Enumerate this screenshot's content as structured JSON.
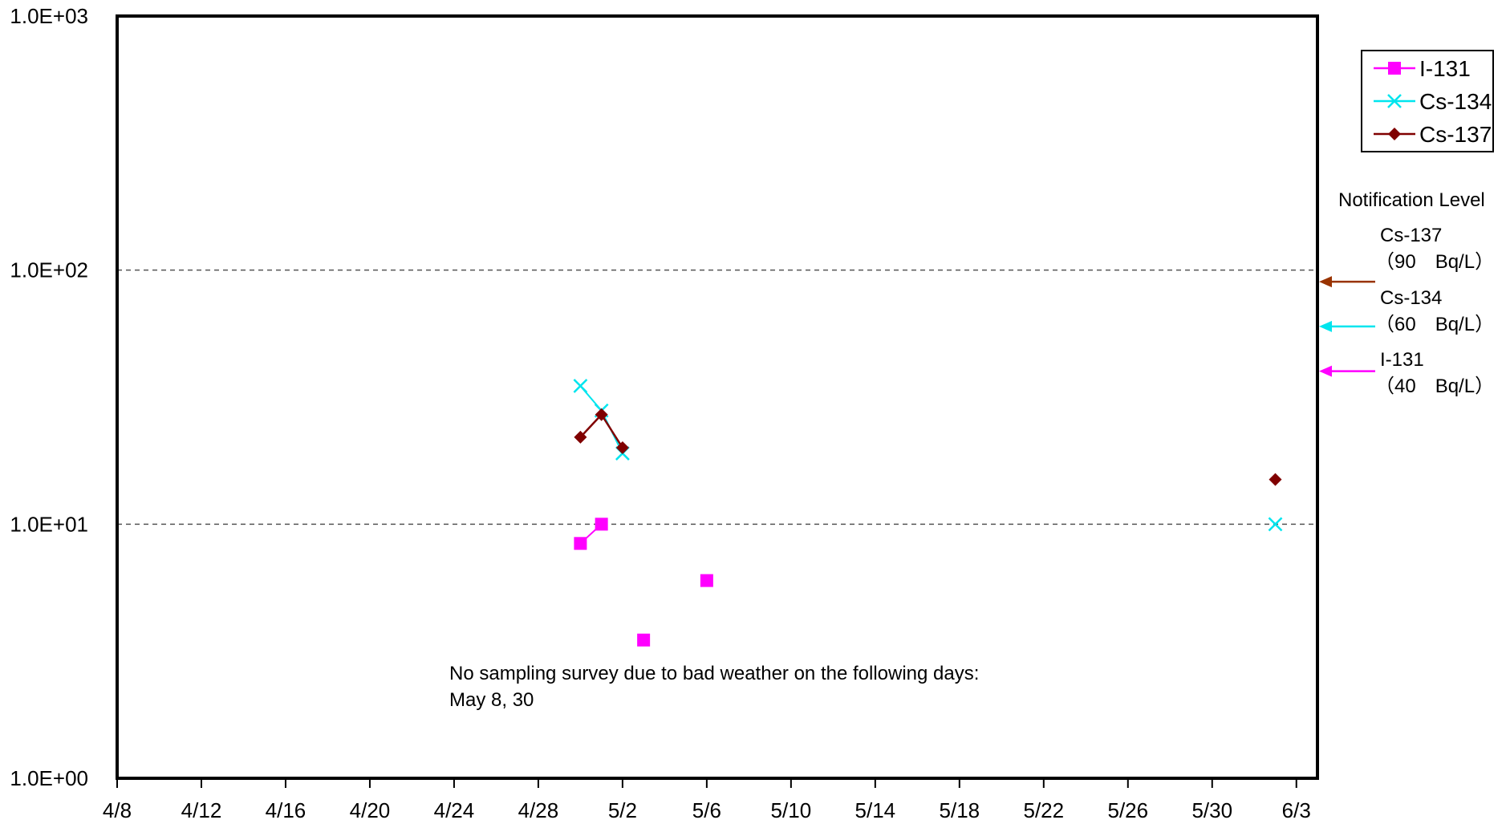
{
  "chart_data": {
    "type": "line",
    "title": "",
    "xlabel": "",
    "ylabel": "",
    "y_scale": "log",
    "ylim": [
      1,
      1000
    ],
    "y_ticks": [
      1,
      10,
      100,
      1000
    ],
    "y_tick_labels": [
      "1.0E+00",
      "1.0E+01",
      "1.0E+02",
      "1.0E+03"
    ],
    "xlim": [
      "2011-04-08",
      "2011-06-04"
    ],
    "x_ticks": [
      "2011-04-08",
      "2011-04-12",
      "2011-04-16",
      "2011-04-20",
      "2011-04-24",
      "2011-04-28",
      "2011-05-02",
      "2011-05-06",
      "2011-05-10",
      "2011-05-14",
      "2011-05-18",
      "2011-05-22",
      "2011-05-26",
      "2011-05-30",
      "2011-06-03"
    ],
    "x_tick_labels": [
      "4/8",
      "4/12",
      "4/16",
      "4/20",
      "4/24",
      "4/28",
      "5/2",
      "5/6",
      "5/10",
      "5/14",
      "5/18",
      "5/22",
      "5/26",
      "5/30",
      "6/3"
    ],
    "grid": "horizontal dashed",
    "legend_position": "top-right",
    "colors": {
      "i131": "#ff00ff",
      "cs134": "#00e5ee",
      "cs137": "#800000",
      "notif_cs137": "#993300"
    },
    "series": [
      {
        "name": "I-131",
        "marker": "square",
        "points": [
          {
            "x": "2011-04-30",
            "y": 8.4
          },
          {
            "x": "2011-05-01",
            "y": 10.0
          },
          {
            "x": "2011-05-03",
            "y": 3.5
          },
          {
            "x": "2011-05-06",
            "y": 6.0
          }
        ],
        "segments": [
          [
            0,
            1
          ]
        ]
      },
      {
        "name": "Cs-134",
        "marker": "x",
        "points": [
          {
            "x": "2011-04-30",
            "y": 35
          },
          {
            "x": "2011-05-01",
            "y": 28
          },
          {
            "x": "2011-05-02",
            "y": 19
          },
          {
            "x": "2011-06-02",
            "y": 10
          }
        ],
        "segments": [
          [
            0,
            1
          ],
          [
            1,
            2
          ]
        ]
      },
      {
        "name": "Cs-137",
        "marker": "diamond",
        "points": [
          {
            "x": "2011-04-30",
            "y": 22
          },
          {
            "x": "2011-05-01",
            "y": 27
          },
          {
            "x": "2011-05-02",
            "y": 20
          },
          {
            "x": "2011-06-02",
            "y": 15
          }
        ],
        "segments": [
          [
            0,
            1
          ],
          [
            1,
            2
          ]
        ]
      }
    ],
    "annotation_lines": [
      "No sampling survey due to bad weather on the following days:",
      "May 8, 30"
    ],
    "notification": {
      "title": "Notification Level",
      "levels": [
        {
          "nuclide": "Cs-137",
          "value": 90,
          "label": "（90　Bq/L）",
          "color_key": "notif_cs137"
        },
        {
          "nuclide": "Cs-134",
          "value": 60,
          "label": "（60　Bq/L）",
          "color_key": "cs134"
        },
        {
          "nuclide": "I-131",
          "value": 40,
          "label": "（40　Bq/L）",
          "color_key": "i131"
        }
      ]
    }
  }
}
